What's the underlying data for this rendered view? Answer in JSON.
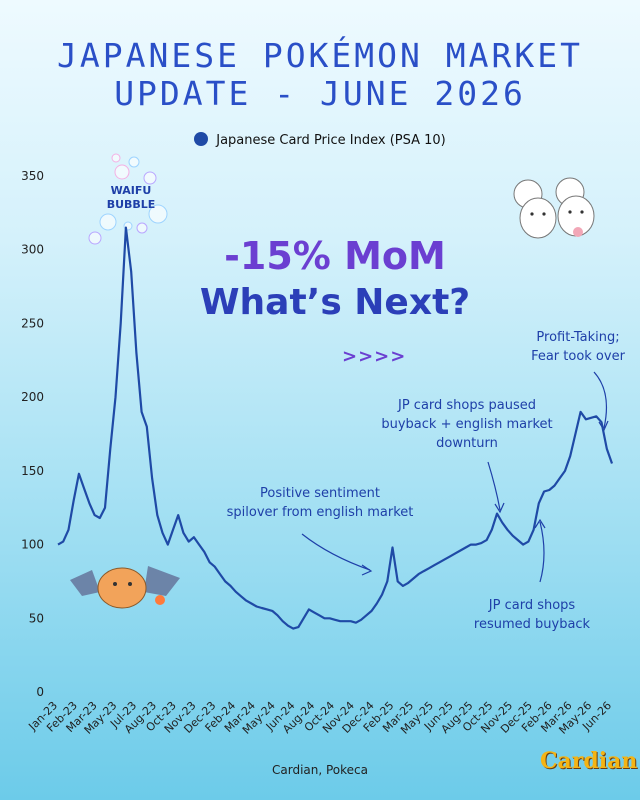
{
  "title": {
    "line1": "JAPANESE POKÉMON MARKET",
    "line2": "UPDATE - JUNE 2026"
  },
  "headline": {
    "line1": "-15% MoM",
    "line2": "What’s Next?",
    "arrows": ">>>>"
  },
  "bubble_label": {
    "line1": "WAIFU",
    "line2": "BUBBLE"
  },
  "source": "Cardian, Pokeca",
  "logo": "Cardian",
  "colors": {
    "line": "#1f4aa6",
    "title": "#2a4fc7",
    "headline_top": "#6b3fd1",
    "headline_bottom": "#2b3fb8",
    "annotation": "#1e3fa8"
  },
  "chart_data": {
    "type": "line",
    "series": [
      {
        "name": "Japanese Card Price Index (PSA 10)",
        "values": [
          100,
          102,
          110,
          130,
          148,
          138,
          128,
          120,
          118,
          125,
          165,
          200,
          250,
          315,
          285,
          230,
          190,
          180,
          145,
          120,
          108,
          100,
          110,
          120,
          108,
          102,
          105,
          100,
          95,
          88,
          85,
          80,
          75,
          72,
          68,
          65,
          62,
          60,
          58,
          57,
          56,
          55,
          52,
          48,
          45,
          43,
          44,
          50,
          56,
          54,
          52,
          50,
          50,
          49,
          48,
          48,
          48,
          47,
          49,
          52,
          55,
          60,
          66,
          75,
          98,
          75,
          72,
          74,
          77,
          80,
          82,
          84,
          86,
          88,
          90,
          92,
          94,
          96,
          98,
          100,
          100,
          101,
          103,
          110,
          121,
          115,
          110,
          106,
          103,
          100,
          102,
          110,
          128,
          136,
          137,
          140,
          145,
          150,
          160,
          175,
          190,
          185,
          186,
          187,
          183,
          165,
          155
        ]
      }
    ],
    "x_tick_labels": [
      "Jan-23",
      "Feb-23",
      "Mar-23",
      "May-23",
      "Jul-23",
      "Aug-23",
      "Oct-23",
      "Nov-23",
      "Dec-23",
      "Feb-24",
      "Mar-24",
      "May-24",
      "Jun-24",
      "Aug-24",
      "Oct-24",
      "Nov-24",
      "Dec-24",
      "Feb-25",
      "Mar-25",
      "May-25",
      "Jun-25",
      "Aug-25",
      "Oct-25",
      "Nov-25",
      "Dec-25",
      "Feb-26",
      "Mar-26",
      "May-26",
      "Jun-26"
    ],
    "y_ticks": [
      0,
      50,
      100,
      150,
      200,
      250,
      300,
      350
    ],
    "ylim": [
      0,
      350
    ],
    "legend_placement": "top-center",
    "grid": false,
    "annotations": [
      {
        "id": "profit-taking",
        "lines": [
          "Profit-Taking;",
          "Fear took over"
        ]
      },
      {
        "id": "jp-paused",
        "lines": [
          "JP card shops paused",
          "buyback + english market",
          "downturn"
        ]
      },
      {
        "id": "positive-sentiment",
        "lines": [
          "Positive sentiment",
          "spilover from english market"
        ]
      },
      {
        "id": "jp-resumed",
        "lines": [
          "JP card shops",
          "resumed buyback"
        ]
      }
    ]
  }
}
